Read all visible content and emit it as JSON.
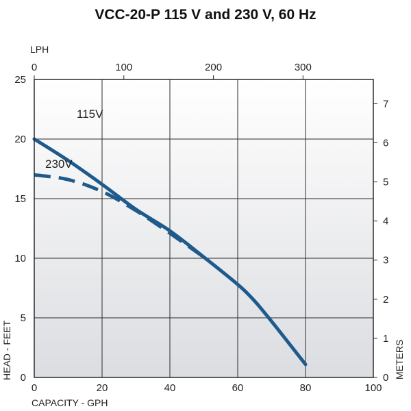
{
  "chart_data": {
    "type": "line",
    "title": "VCC-20-P 115 V and 230 V, 60 Hz",
    "xlabel": "CAPACITY - GPH",
    "ylabel": "HEAD - FEET",
    "x2label": "LPH",
    "y2label": "METERS",
    "xlim": [
      0,
      100
    ],
    "ylim": [
      0,
      25
    ],
    "x2lim": [
      0,
      378.5
    ],
    "y2lim": [
      0,
      7.62
    ],
    "xticks": [
      0,
      20,
      40,
      60,
      80,
      100
    ],
    "yticks": [
      0,
      5,
      10,
      15,
      20,
      25
    ],
    "x2ticks": [
      0,
      100,
      200,
      300
    ],
    "y2ticks": [
      0,
      1,
      2,
      3,
      4,
      5,
      6,
      7
    ],
    "grid": true,
    "series": [
      {
        "name": "115V",
        "style": "solid",
        "x": [
          0,
          10,
          20,
          30,
          40,
          50,
          60,
          65,
          70,
          75,
          80
        ],
        "y": [
          20,
          18.2,
          16.2,
          14.1,
          12.3,
          10.1,
          7.8,
          6.4,
          4.7,
          2.9,
          1.1
        ]
      },
      {
        "name": "230V",
        "style": "dashed",
        "x": [
          0,
          10,
          20,
          30,
          40,
          50
        ],
        "y": [
          17,
          16.6,
          15.6,
          14.0,
          12.1,
          10.1
        ]
      }
    ],
    "colors": {
      "line": "#1e5a8c",
      "grid": "#2a2a2a",
      "bg_top": "#ffffff",
      "bg_bottom": "#dcdde1"
    }
  }
}
